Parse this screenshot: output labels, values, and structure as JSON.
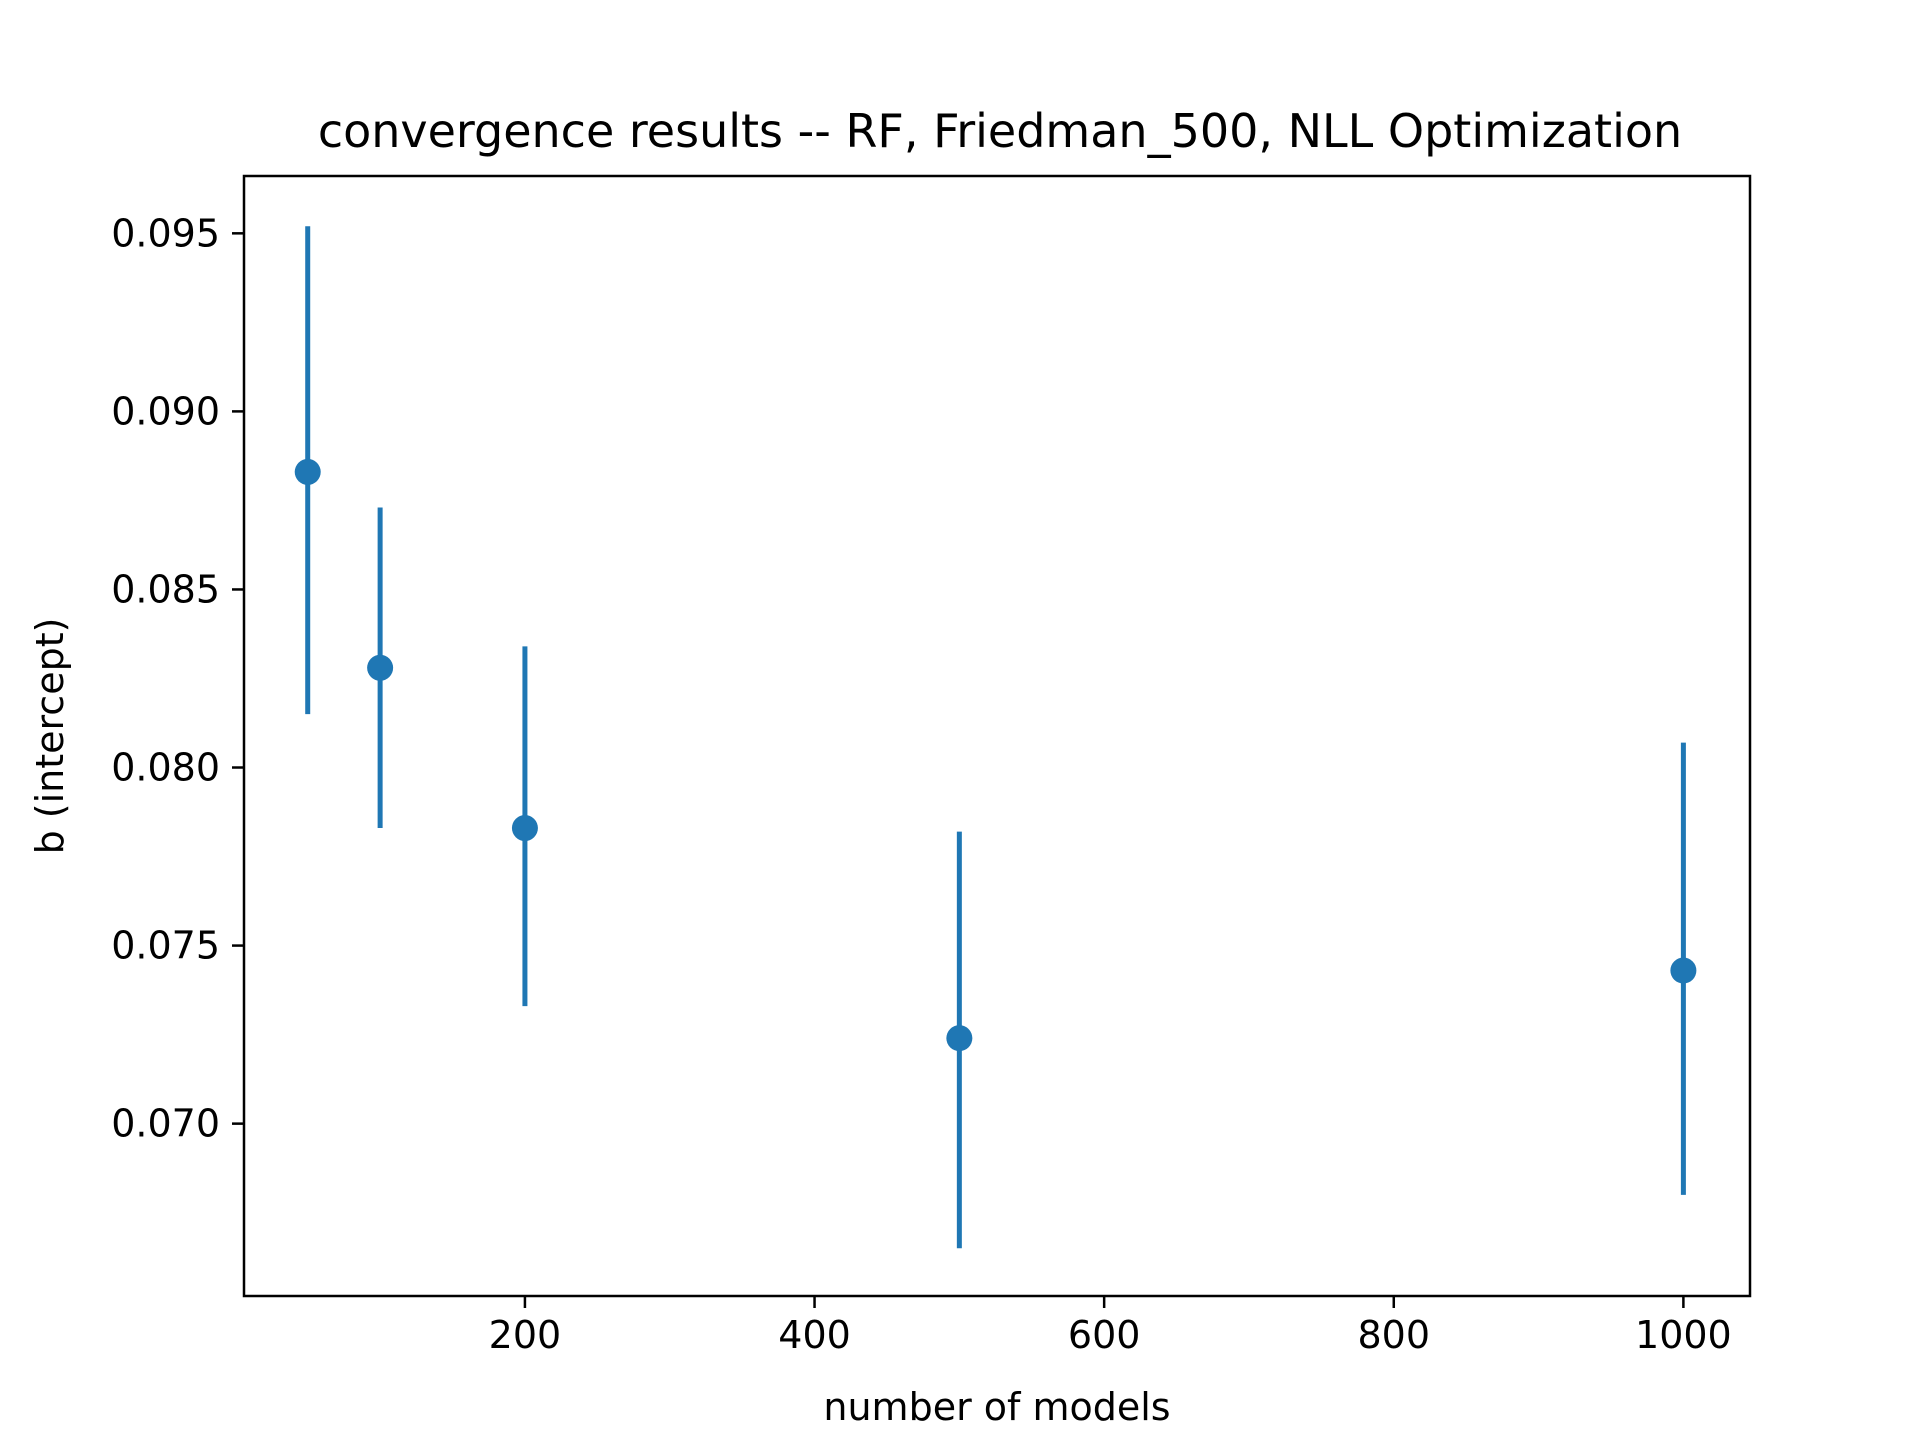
{
  "chart_data": {
    "type": "scatter",
    "title": "convergence results -- RF, Friedman_500, NLL Optimization",
    "xlabel": "number of models",
    "ylabel": "b (intercept)",
    "xlim": [
      6,
      1046
    ],
    "ylim": [
      0.06516,
      0.09661
    ],
    "xticks": [
      200,
      400,
      600,
      800,
      1000
    ],
    "xtick_labels": [
      "200",
      "400",
      "600",
      "800",
      "1000"
    ],
    "yticks": [
      0.07,
      0.075,
      0.08,
      0.085,
      0.09,
      0.095
    ],
    "ytick_labels": [
      "0.070",
      "0.075",
      "0.080",
      "0.085",
      "0.090",
      "0.095"
    ],
    "grid": false,
    "series": [
      {
        "color": "#1f77b4",
        "points": [
          {
            "x": 50,
            "y": 0.0883,
            "yerr_low": 0.0815,
            "yerr_high": 0.0952
          },
          {
            "x": 100,
            "y": 0.0828,
            "yerr_low": 0.0783,
            "yerr_high": 0.0873
          },
          {
            "x": 200,
            "y": 0.0783,
            "yerr_low": 0.0733,
            "yerr_high": 0.0834
          },
          {
            "x": 500,
            "y": 0.0724,
            "yerr_low": 0.0665,
            "yerr_high": 0.0782
          },
          {
            "x": 1000,
            "y": 0.0743,
            "yerr_low": 0.068,
            "yerr_high": 0.0807
          }
        ]
      }
    ]
  }
}
